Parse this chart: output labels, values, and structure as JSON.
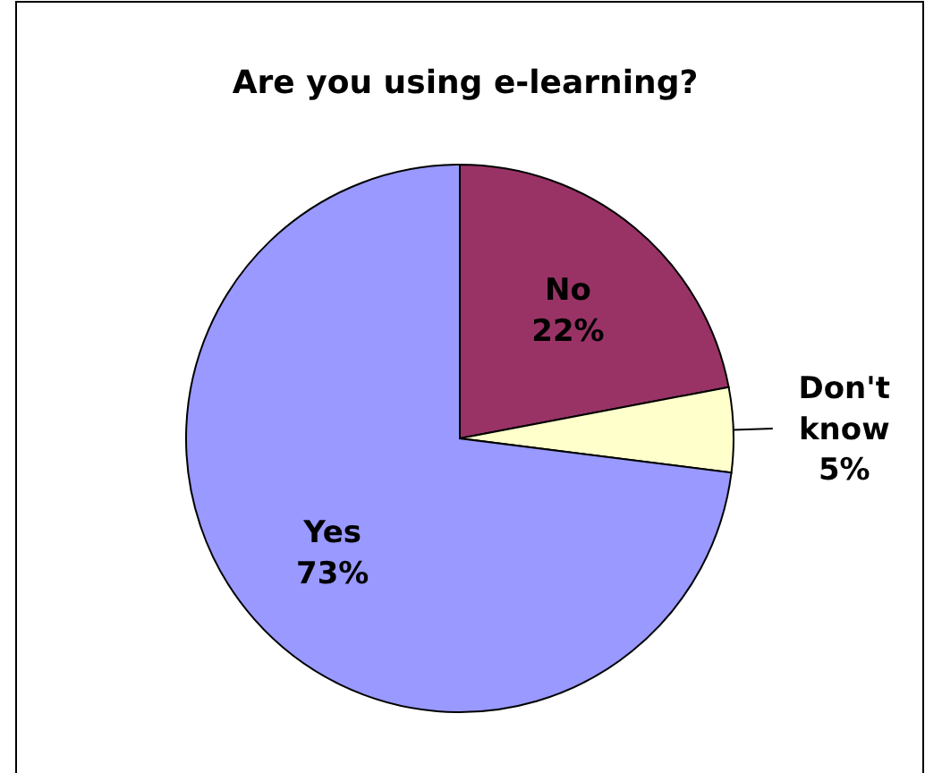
{
  "chart_data": {
    "type": "pie",
    "title": "Are you using e-learning?",
    "categories": [
      "No",
      "Don't know",
      "Yes"
    ],
    "values": [
      22,
      5,
      73
    ],
    "value_labels": [
      "22%",
      "5%",
      "73%"
    ],
    "colors": [
      "#993366",
      "#ffffcc",
      "#9999ff"
    ]
  }
}
